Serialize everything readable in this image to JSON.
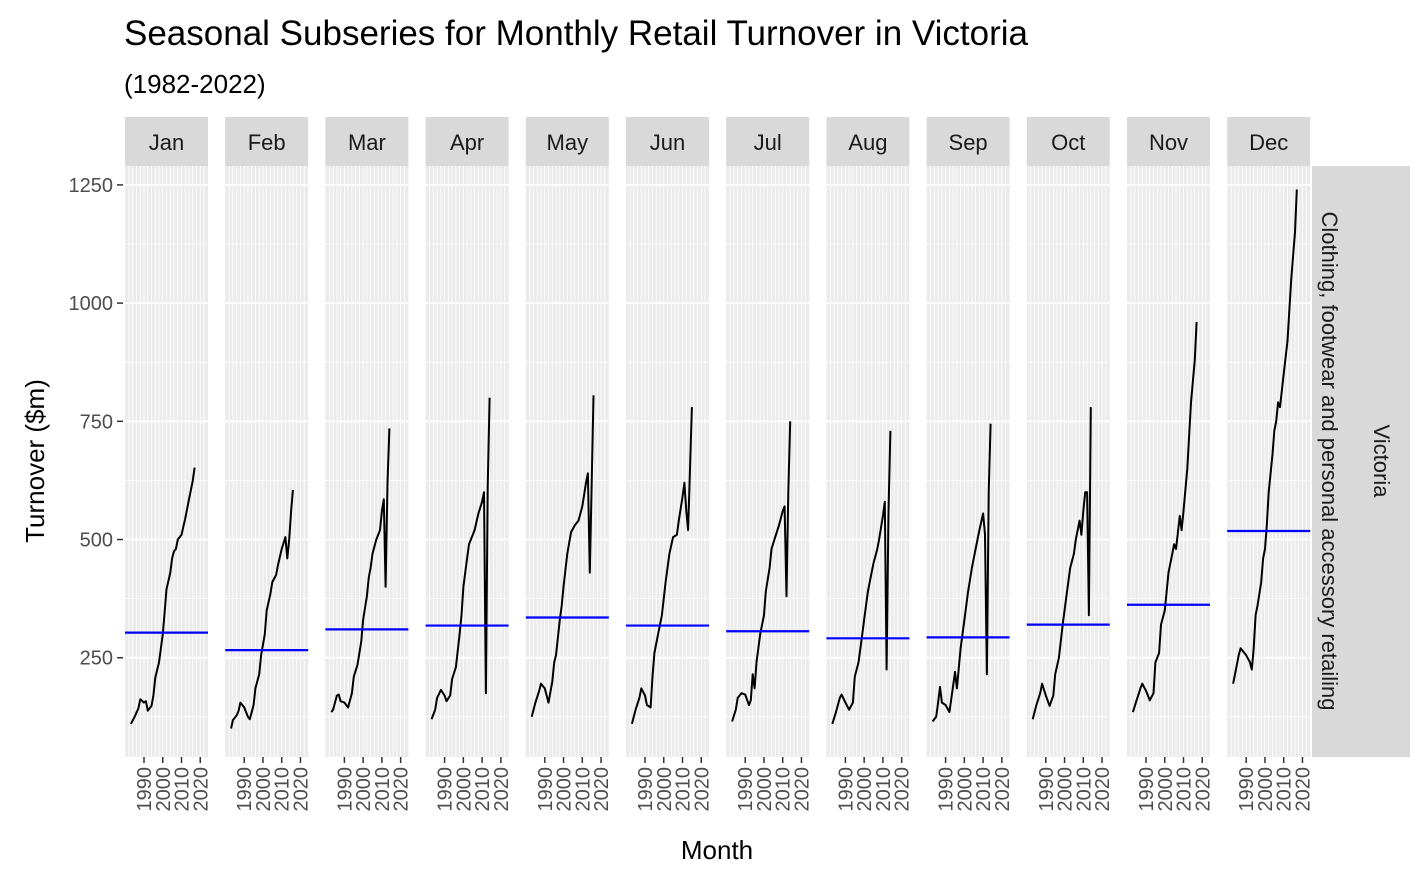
{
  "chart_data": {
    "type": "line",
    "title": "Seasonal Subseries for Monthly Retail Turnover in Victoria",
    "subtitle": "(1982-2022)",
    "xlabel": "Month",
    "ylabel": "Turnover ($m)",
    "ylim": [
      40,
      1290
    ],
    "xlim": [
      1982,
      2022
    ],
    "yticks": [
      250,
      500,
      750,
      1000,
      1250
    ],
    "ytick_labels": [
      "250",
      "500",
      "750",
      "1000",
      "1250"
    ],
    "xticks": [
      1990,
      2000,
      2010,
      2020
    ],
    "xtick_labels": [
      "1990",
      "2000",
      "2010",
      "2020"
    ],
    "facet_rows": [
      "Victoria",
      "Clothing, footwear and personal accessory retailing"
    ],
    "grid": true,
    "mean_line_color": "#0000ff",
    "series_color": "#000000",
    "panel_bg": "#ebebeb",
    "strip_bg": "#d9d9d9",
    "panels": [
      {
        "month": "Jan",
        "mean": 303,
        "points": [
          [
            1983,
            110
          ],
          [
            1985,
            125
          ],
          [
            1987,
            143
          ],
          [
            1988,
            162
          ],
          [
            1990,
            155
          ],
          [
            1991,
            158
          ],
          [
            1992,
            138
          ],
          [
            1994,
            148
          ],
          [
            1995,
            170
          ],
          [
            1996,
            208
          ],
          [
            1998,
            240
          ],
          [
            2000,
            300
          ],
          [
            2001,
            345
          ],
          [
            2002,
            395
          ],
          [
            2004,
            430
          ],
          [
            2005,
            460
          ],
          [
            2006,
            475
          ],
          [
            2007,
            480
          ],
          [
            2008,
            500
          ],
          [
            2010,
            510
          ],
          [
            2012,
            545
          ],
          [
            2014,
            585
          ],
          [
            2016,
            625
          ],
          [
            2017,
            652
          ]
        ]
      },
      {
        "month": "Feb",
        "mean": 266,
        "points": [
          [
            1983,
            100
          ],
          [
            1984,
            118
          ],
          [
            1986,
            128
          ],
          [
            1987,
            138
          ],
          [
            1988,
            155
          ],
          [
            1990,
            145
          ],
          [
            1992,
            125
          ],
          [
            1993,
            120
          ],
          [
            1995,
            150
          ],
          [
            1996,
            185
          ],
          [
            1998,
            215
          ],
          [
            1999,
            255
          ],
          [
            2001,
            300
          ],
          [
            2002,
            350
          ],
          [
            2004,
            385
          ],
          [
            2005,
            410
          ],
          [
            2007,
            425
          ],
          [
            2008,
            445
          ],
          [
            2010,
            480
          ],
          [
            2012,
            505
          ],
          [
            2013,
            460
          ],
          [
            2014,
            500
          ],
          [
            2015,
            560
          ],
          [
            2016,
            605
          ]
        ]
      },
      {
        "month": "Mar",
        "mean": 310,
        "points": [
          [
            1983,
            135
          ],
          [
            1984,
            140
          ],
          [
            1985,
            155
          ],
          [
            1986,
            170
          ],
          [
            1987,
            172
          ],
          [
            1988,
            158
          ],
          [
            1990,
            155
          ],
          [
            1992,
            145
          ],
          [
            1994,
            175
          ],
          [
            1995,
            210
          ],
          [
            1997,
            235
          ],
          [
            1999,
            285
          ],
          [
            2000,
            330
          ],
          [
            2002,
            380
          ],
          [
            2003,
            420
          ],
          [
            2004,
            440
          ],
          [
            2005,
            470
          ],
          [
            2007,
            500
          ],
          [
            2009,
            520
          ],
          [
            2010,
            560
          ],
          [
            2011,
            585
          ],
          [
            2012,
            400
          ],
          [
            2013,
            620
          ],
          [
            2014,
            735
          ]
        ]
      },
      {
        "month": "Apr",
        "mean": 318,
        "points": [
          [
            1983,
            120
          ],
          [
            1985,
            140
          ],
          [
            1986,
            165
          ],
          [
            1988,
            182
          ],
          [
            1990,
            170
          ],
          [
            1991,
            158
          ],
          [
            1993,
            170
          ],
          [
            1994,
            205
          ],
          [
            1996,
            230
          ],
          [
            1998,
            300
          ],
          [
            1999,
            340
          ],
          [
            2000,
            400
          ],
          [
            2002,
            460
          ],
          [
            2003,
            490
          ],
          [
            2004,
            500
          ],
          [
            2006,
            520
          ],
          [
            2008,
            555
          ],
          [
            2010,
            580
          ],
          [
            2011,
            600
          ],
          [
            2012,
            175
          ],
          [
            2013,
            610
          ],
          [
            2014,
            800
          ]
        ]
      },
      {
        "month": "May",
        "mean": 335,
        "points": [
          [
            1983,
            125
          ],
          [
            1985,
            155
          ],
          [
            1987,
            180
          ],
          [
            1988,
            195
          ],
          [
            1990,
            185
          ],
          [
            1992,
            155
          ],
          [
            1994,
            200
          ],
          [
            1995,
            240
          ],
          [
            1996,
            255
          ],
          [
            1998,
            330
          ],
          [
            1999,
            360
          ],
          [
            2000,
            400
          ],
          [
            2002,
            470
          ],
          [
            2004,
            515
          ],
          [
            2006,
            530
          ],
          [
            2008,
            540
          ],
          [
            2010,
            570
          ],
          [
            2012,
            620
          ],
          [
            2013,
            640
          ],
          [
            2014,
            430
          ],
          [
            2015,
            620
          ],
          [
            2016,
            805
          ]
        ]
      },
      {
        "month": "Jun",
        "mean": 318,
        "points": [
          [
            1983,
            110
          ],
          [
            1985,
            140
          ],
          [
            1987,
            165
          ],
          [
            1988,
            185
          ],
          [
            1990,
            170
          ],
          [
            1991,
            150
          ],
          [
            1993,
            145
          ],
          [
            1994,
            210
          ],
          [
            1995,
            260
          ],
          [
            1997,
            300
          ],
          [
            1999,
            340
          ],
          [
            2001,
            410
          ],
          [
            2003,
            470
          ],
          [
            2005,
            505
          ],
          [
            2007,
            510
          ],
          [
            2008,
            540
          ],
          [
            2010,
            590
          ],
          [
            2011,
            620
          ],
          [
            2012,
            560
          ],
          [
            2013,
            520
          ],
          [
            2014,
            650
          ],
          [
            2015,
            780
          ]
        ]
      },
      {
        "month": "Jul",
        "mean": 306,
        "points": [
          [
            1983,
            115
          ],
          [
            1985,
            140
          ],
          [
            1986,
            165
          ],
          [
            1988,
            175
          ],
          [
            1990,
            172
          ],
          [
            1992,
            150
          ],
          [
            1993,
            160
          ],
          [
            1994,
            215
          ],
          [
            1995,
            185
          ],
          [
            1996,
            240
          ],
          [
            1998,
            300
          ],
          [
            2000,
            340
          ],
          [
            2001,
            390
          ],
          [
            2003,
            440
          ],
          [
            2004,
            480
          ],
          [
            2006,
            505
          ],
          [
            2008,
            530
          ],
          [
            2010,
            560
          ],
          [
            2011,
            570
          ],
          [
            2012,
            380
          ],
          [
            2013,
            600
          ],
          [
            2014,
            750
          ]
        ]
      },
      {
        "month": "Aug",
        "mean": 291,
        "points": [
          [
            1983,
            110
          ],
          [
            1985,
            135
          ],
          [
            1987,
            165
          ],
          [
            1988,
            172
          ],
          [
            1990,
            155
          ],
          [
            1992,
            140
          ],
          [
            1994,
            155
          ],
          [
            1995,
            210
          ],
          [
            1997,
            240
          ],
          [
            1999,
            300
          ],
          [
            2000,
            330
          ],
          [
            2002,
            390
          ],
          [
            2004,
            430
          ],
          [
            2005,
            450
          ],
          [
            2007,
            480
          ],
          [
            2008,
            500
          ],
          [
            2010,
            550
          ],
          [
            2011,
            580
          ],
          [
            2012,
            225
          ],
          [
            2013,
            560
          ],
          [
            2014,
            730
          ]
        ]
      },
      {
        "month": "Sep",
        "mean": 293,
        "points": [
          [
            1983,
            115
          ],
          [
            1985,
            125
          ],
          [
            1986,
            155
          ],
          [
            1987,
            188
          ],
          [
            1988,
            155
          ],
          [
            1990,
            150
          ],
          [
            1992,
            135
          ],
          [
            1994,
            190
          ],
          [
            1995,
            220
          ],
          [
            1996,
            185
          ],
          [
            1998,
            270
          ],
          [
            2000,
            330
          ],
          [
            2002,
            390
          ],
          [
            2004,
            440
          ],
          [
            2006,
            480
          ],
          [
            2008,
            520
          ],
          [
            2010,
            555
          ],
          [
            2011,
            510
          ],
          [
            2012,
            215
          ],
          [
            2013,
            600
          ],
          [
            2014,
            745
          ]
        ]
      },
      {
        "month": "Oct",
        "mean": 320,
        "points": [
          [
            1983,
            120
          ],
          [
            1985,
            150
          ],
          [
            1987,
            175
          ],
          [
            1988,
            195
          ],
          [
            1990,
            170
          ],
          [
            1992,
            148
          ],
          [
            1994,
            170
          ],
          [
            1995,
            215
          ],
          [
            1997,
            250
          ],
          [
            1999,
            320
          ],
          [
            2001,
            380
          ],
          [
            2003,
            440
          ],
          [
            2005,
            470
          ],
          [
            2006,
            500
          ],
          [
            2008,
            540
          ],
          [
            2009,
            510
          ],
          [
            2010,
            560
          ],
          [
            2011,
            600
          ],
          [
            2012,
            600
          ],
          [
            2013,
            340
          ],
          [
            2014,
            780
          ]
        ]
      },
      {
        "month": "Nov",
        "mean": 362,
        "points": [
          [
            1983,
            135
          ],
          [
            1985,
            160
          ],
          [
            1987,
            185
          ],
          [
            1988,
            195
          ],
          [
            1990,
            180
          ],
          [
            1992,
            160
          ],
          [
            1994,
            175
          ],
          [
            1995,
            240
          ],
          [
            1997,
            260
          ],
          [
            1998,
            320
          ],
          [
            2000,
            350
          ],
          [
            2002,
            430
          ],
          [
            2004,
            470
          ],
          [
            2005,
            490
          ],
          [
            2006,
            480
          ],
          [
            2008,
            550
          ],
          [
            2009,
            520
          ],
          [
            2010,
            560
          ],
          [
            2012,
            650
          ],
          [
            2014,
            790
          ],
          [
            2016,
            880
          ],
          [
            2017,
            960
          ]
        ]
      },
      {
        "month": "Dec",
        "mean": 518,
        "points": [
          [
            1983,
            195
          ],
          [
            1984,
            215
          ],
          [
            1986,
            255
          ],
          [
            1987,
            270
          ],
          [
            1988,
            265
          ],
          [
            1990,
            255
          ],
          [
            1992,
            240
          ],
          [
            1993,
            225
          ],
          [
            1994,
            270
          ],
          [
            1995,
            340
          ],
          [
            1996,
            360
          ],
          [
            1998,
            410
          ],
          [
            1999,
            460
          ],
          [
            2000,
            480
          ],
          [
            2001,
            530
          ],
          [
            2002,
            600
          ],
          [
            2004,
            680
          ],
          [
            2005,
            730
          ],
          [
            2006,
            750
          ],
          [
            2007,
            790
          ],
          [
            2008,
            780
          ],
          [
            2010,
            850
          ],
          [
            2012,
            920
          ],
          [
            2014,
            1050
          ],
          [
            2016,
            1150
          ],
          [
            2017,
            1240
          ]
        ]
      }
    ]
  }
}
